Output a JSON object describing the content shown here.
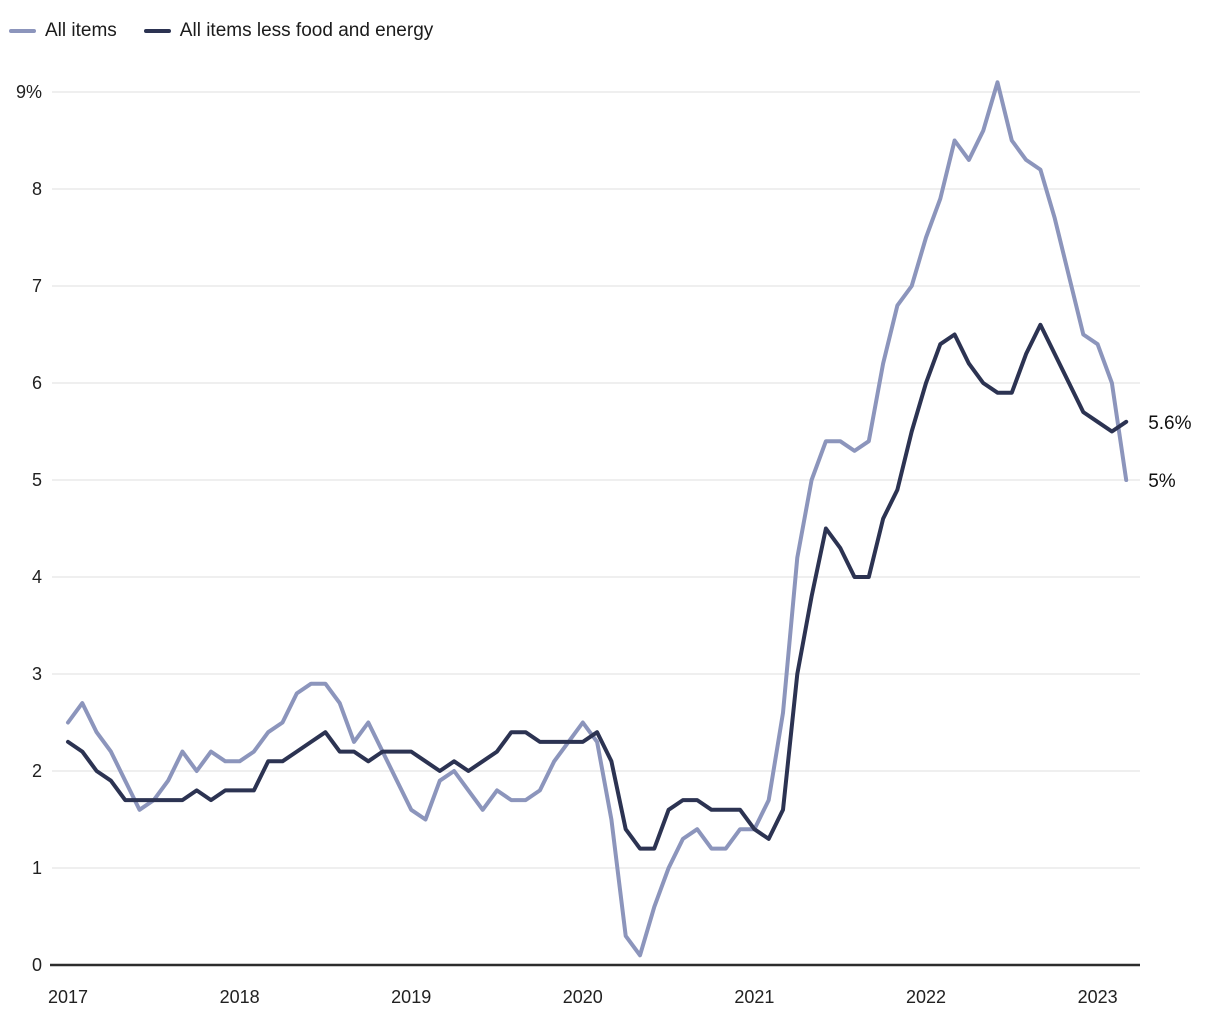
{
  "legend": {
    "items": [
      {
        "label": "All items",
        "color": "#8C95BC"
      },
      {
        "label": "All items less food and energy",
        "color": "#2C3352"
      }
    ]
  },
  "chart_data": {
    "type": "line",
    "frequency": "monthly",
    "x_start": "2017-01",
    "x_end": "2023-03",
    "x_tick_labels": [
      "2017",
      "2018",
      "2019",
      "2020",
      "2021",
      "2022",
      "2023"
    ],
    "y_tick_labels": [
      "9%",
      "8",
      "7",
      "6",
      "5",
      "4",
      "3",
      "2",
      "1",
      "0"
    ],
    "ylim": [
      0,
      9
    ],
    "y_unit": "%",
    "grid": true,
    "legend_position": "top-left",
    "colors": {
      "grid": "#E5E5E5",
      "axis": "#2D2D2D",
      "text": "#212121"
    },
    "series": [
      {
        "name": "All items",
        "color": "#8C95BC",
        "end_label": "5%",
        "values": [
          2.5,
          2.7,
          2.4,
          2.2,
          1.9,
          1.6,
          1.7,
          1.9,
          2.2,
          2.0,
          2.2,
          2.1,
          2.1,
          2.2,
          2.4,
          2.5,
          2.8,
          2.9,
          2.9,
          2.7,
          2.3,
          2.5,
          2.2,
          1.9,
          1.6,
          1.5,
          1.9,
          2.0,
          1.8,
          1.6,
          1.8,
          1.7,
          1.7,
          1.8,
          2.1,
          2.3,
          2.5,
          2.3,
          1.5,
          0.3,
          0.1,
          0.6,
          1.0,
          1.3,
          1.4,
          1.2,
          1.2,
          1.4,
          1.4,
          1.7,
          2.6,
          4.2,
          5.0,
          5.4,
          5.4,
          5.3,
          5.4,
          6.2,
          6.8,
          7.0,
          7.5,
          7.9,
          8.5,
          8.3,
          8.6,
          9.1,
          8.5,
          8.3,
          8.2,
          7.7,
          7.1,
          6.5,
          6.4,
          6.0,
          5.0
        ]
      },
      {
        "name": "All items less food and energy",
        "color": "#2C3352",
        "end_label": "5.6%",
        "values": [
          2.3,
          2.2,
          2.0,
          1.9,
          1.7,
          1.7,
          1.7,
          1.7,
          1.7,
          1.8,
          1.7,
          1.8,
          1.8,
          1.8,
          2.1,
          2.1,
          2.2,
          2.3,
          2.4,
          2.2,
          2.2,
          2.1,
          2.2,
          2.2,
          2.2,
          2.1,
          2.0,
          2.1,
          2.0,
          2.1,
          2.2,
          2.4,
          2.4,
          2.3,
          2.3,
          2.3,
          2.3,
          2.4,
          2.1,
          1.4,
          1.2,
          1.2,
          1.6,
          1.7,
          1.7,
          1.6,
          1.6,
          1.6,
          1.4,
          1.3,
          1.6,
          3.0,
          3.8,
          4.5,
          4.3,
          4.0,
          4.0,
          4.6,
          4.9,
          5.5,
          6.0,
          6.4,
          6.5,
          6.2,
          6.0,
          5.9,
          5.9,
          6.3,
          6.6,
          6.3,
          6.0,
          5.7,
          5.6,
          5.5,
          5.6
        ]
      }
    ]
  }
}
